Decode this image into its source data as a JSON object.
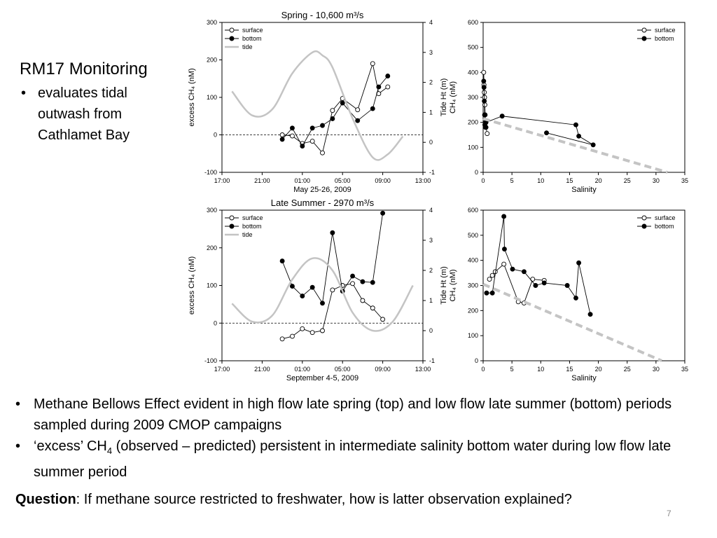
{
  "slide": {
    "title": "RM17 Monitoring",
    "subtitle_bullet": "•",
    "subtitle": "evaluates tidal outwash from Cathlamet Bay",
    "bullets": [
      {
        "dot": "•",
        "text_a": "Methane Bellows Effect evident in high flow late spring (top) and low flow late summer (bottom) periods sampled during 2009 CMOP campaigns"
      },
      {
        "dot": "•",
        "text_a": "‘excess’ CH",
        "sub": "4",
        "text_b": " (observed – predicted) persistent in intermediate salinity bottom water during low flow late summer period"
      }
    ],
    "question_label": "Question",
    "question_text": ": If methane source restricted to freshwater, how is latter observation explained?",
    "page_number": "7"
  },
  "chart_data": [
    {
      "id": "spring-time",
      "type": "line",
      "title": "Spring - 10,600 m³/s",
      "xlabel": "May 25-26, 2009",
      "ylabel": "excess CH₄ (nM)",
      "y2label": "Tide Ht (m)",
      "x_ticks": [
        "17:00",
        "21:00",
        "01:00",
        "05:00",
        "09:00",
        "13:00"
      ],
      "x_tick_hours": [
        0,
        4,
        8,
        12,
        16,
        20
      ],
      "ylim": [
        -100,
        300
      ],
      "y_ticks": [
        -100,
        0,
        100,
        200,
        300
      ],
      "y2lim": [
        -1,
        4
      ],
      "y2_ticks": [
        -1,
        0,
        1,
        2,
        3,
        4
      ],
      "zero_line": true,
      "legend": [
        "surface",
        "bottom",
        "tide"
      ],
      "series": [
        {
          "name": "surface",
          "style": "open",
          "x": [
            6,
            7,
            8,
            9,
            10,
            11,
            12,
            13.5,
            15,
            15.6,
            16.5
          ],
          "values": [
            0,
            -3,
            -23,
            -17,
            -48,
            65,
            97,
            67,
            190,
            110,
            128
          ]
        },
        {
          "name": "bottom",
          "style": "filled",
          "x": [
            6,
            7,
            8,
            9,
            10,
            11,
            12,
            13.5,
            15,
            15.6,
            16.5
          ],
          "values": [
            -12,
            18,
            -30,
            18,
            25,
            43,
            85,
            38,
            70,
            128,
            157
          ]
        },
        {
          "name": "tide",
          "style": "line",
          "x": [
            1,
            3,
            5,
            7,
            9,
            10,
            11,
            13,
            15,
            16.5,
            18
          ],
          "values": [
            1.7,
            0.9,
            1.1,
            2.3,
            3.0,
            2.9,
            2.5,
            0.8,
            -0.5,
            -0.4,
            0.2
          ]
        }
      ]
    },
    {
      "id": "spring-salinity",
      "type": "scatter",
      "xlabel": "Salinity",
      "ylabel": "CH₄ (nM)",
      "xlim": [
        0,
        35
      ],
      "x_ticks": [
        0,
        5,
        10,
        15,
        20,
        25,
        30,
        35
      ],
      "ylim": [
        0,
        600
      ],
      "y_ticks": [
        0,
        100,
        200,
        300,
        400,
        500,
        600
      ],
      "legend": [
        "surface",
        "bottom"
      ],
      "series": [
        {
          "name": "surface",
          "style": "open",
          "x": [
            0.1,
            0.15,
            0.2,
            0.25,
            0.3,
            0.35,
            0.4,
            0.5,
            0.7
          ],
          "values": [
            400,
            350,
            320,
            300,
            270,
            230,
            200,
            180,
            155
          ]
        },
        {
          "name": "bottom",
          "style": "filled",
          "x": [
            0.1,
            0.15,
            0.2,
            0.25,
            0.3,
            0.4,
            0.5,
            3.3,
            16.1,
            16.6,
            19.1,
            11
          ],
          "values": [
            365,
            340,
            285,
            230,
            190,
            180,
            200,
            225,
            190,
            145,
            110,
            158
          ]
        },
        {
          "name": "mixing line",
          "style": "dashed",
          "x": [
            0,
            32
          ],
          "values": [
            215,
            0
          ]
        }
      ]
    },
    {
      "id": "summer-time",
      "type": "line",
      "title": "Late Summer - 2970 m³/s",
      "xlabel": "September 4-5, 2009",
      "ylabel": "excess CH₄ (nM)",
      "y2label": "Tide Ht (m)",
      "x_ticks": [
        "17:00",
        "21:00",
        "01:00",
        "05:00",
        "09:00",
        "13:00"
      ],
      "x_tick_hours": [
        0,
        4,
        8,
        12,
        16,
        20
      ],
      "ylim": [
        -100,
        300
      ],
      "y_ticks": [
        -100,
        0,
        100,
        200,
        300
      ],
      "y2lim": [
        -1,
        4
      ],
      "y2_ticks": [
        -1,
        0,
        1,
        2,
        3,
        4
      ],
      "zero_line": true,
      "legend": [
        "surface",
        "bottom",
        "tide"
      ],
      "series": [
        {
          "name": "surface",
          "style": "open",
          "x": [
            6,
            7,
            8,
            9,
            10,
            11,
            12,
            13,
            14,
            15,
            16
          ],
          "values": [
            -42,
            -35,
            -15,
            -25,
            -20,
            88,
            100,
            105,
            60,
            40,
            10
          ]
        },
        {
          "name": "bottom",
          "style": "filled",
          "x": [
            6,
            7,
            8,
            9,
            10,
            11,
            12,
            13,
            14,
            15,
            16
          ],
          "values": [
            165,
            98,
            72,
            95,
            53,
            240,
            85,
            125,
            110,
            108,
            292
          ]
        },
        {
          "name": "tide",
          "style": "line",
          "x": [
            1,
            3,
            5,
            7,
            9,
            11,
            13,
            15,
            17,
            19
          ],
          "values": [
            0.9,
            0.3,
            0.5,
            1.7,
            2.4,
            2.0,
            0.6,
            0,
            0.3,
            1.5
          ]
        }
      ]
    },
    {
      "id": "summer-salinity",
      "type": "scatter",
      "xlabel": "Salinity",
      "ylabel": "CH₄ (nM)",
      "xlim": [
        0,
        35
      ],
      "x_ticks": [
        0,
        5,
        10,
        15,
        20,
        25,
        30,
        35
      ],
      "ylim": [
        0,
        600
      ],
      "y_ticks": [
        0,
        100,
        200,
        300,
        400,
        500,
        600
      ],
      "legend": [
        "surface",
        "bottom"
      ],
      "series": [
        {
          "name": "surface",
          "style": "open",
          "x": [
            1.1,
            1.6,
            2.1,
            3.6,
            6.1,
            7.1,
            8.6,
            10.6
          ],
          "values": [
            325,
            340,
            355,
            385,
            235,
            230,
            325,
            320
          ]
        },
        {
          "name": "bottom",
          "style": "filled",
          "x": [
            0.6,
            1.6,
            3.6,
            3.7,
            5.1,
            7.1,
            9.1,
            10.6,
            14.6,
            16.1,
            16.6,
            18.6
          ],
          "values": [
            270,
            270,
            575,
            445,
            365,
            355,
            300,
            310,
            300,
            250,
            390,
            185
          ]
        },
        {
          "name": "mixing line",
          "style": "dashed",
          "x": [
            0,
            31
          ],
          "values": [
            305,
            0
          ]
        }
      ]
    }
  ]
}
